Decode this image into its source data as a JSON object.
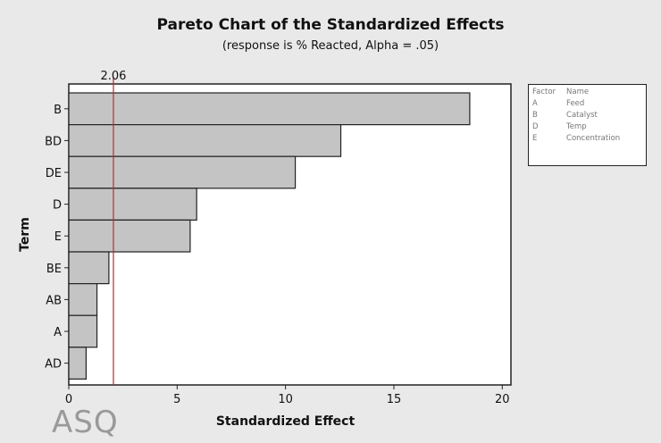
{
  "chart_data": {
    "type": "bar",
    "orientation": "horizontal",
    "title": "Pareto Chart of the Standardized Effects",
    "subtitle": "(response is % Reacted, Alpha = .05)",
    "xlabel": "Standardized Effect",
    "ylabel": "Term",
    "categories": [
      "B",
      "BD",
      "DE",
      "D",
      "E",
      "BE",
      "AB",
      "A",
      "AD"
    ],
    "values": [
      18.5,
      12.55,
      10.45,
      5.9,
      5.6,
      1.85,
      1.3,
      1.3,
      0.8
    ],
    "xlim": [
      0,
      20.4
    ],
    "xticks": [
      "0",
      "5",
      "10",
      "15",
      "20"
    ],
    "reference_line": {
      "value": 2.06,
      "label": "2.06",
      "color": "#b03030"
    },
    "bar_color": "#c4c4c4",
    "grid": false,
    "legend": {
      "placement": "right",
      "headers": [
        "Factor",
        "Name"
      ],
      "rows": [
        [
          "A",
          "Feed"
        ],
        [
          "B",
          "Catalyst"
        ],
        [
          "D",
          "Temp"
        ],
        [
          "E",
          "Concentration"
        ]
      ]
    }
  },
  "watermark": {
    "logo_text": "ASQ"
  }
}
